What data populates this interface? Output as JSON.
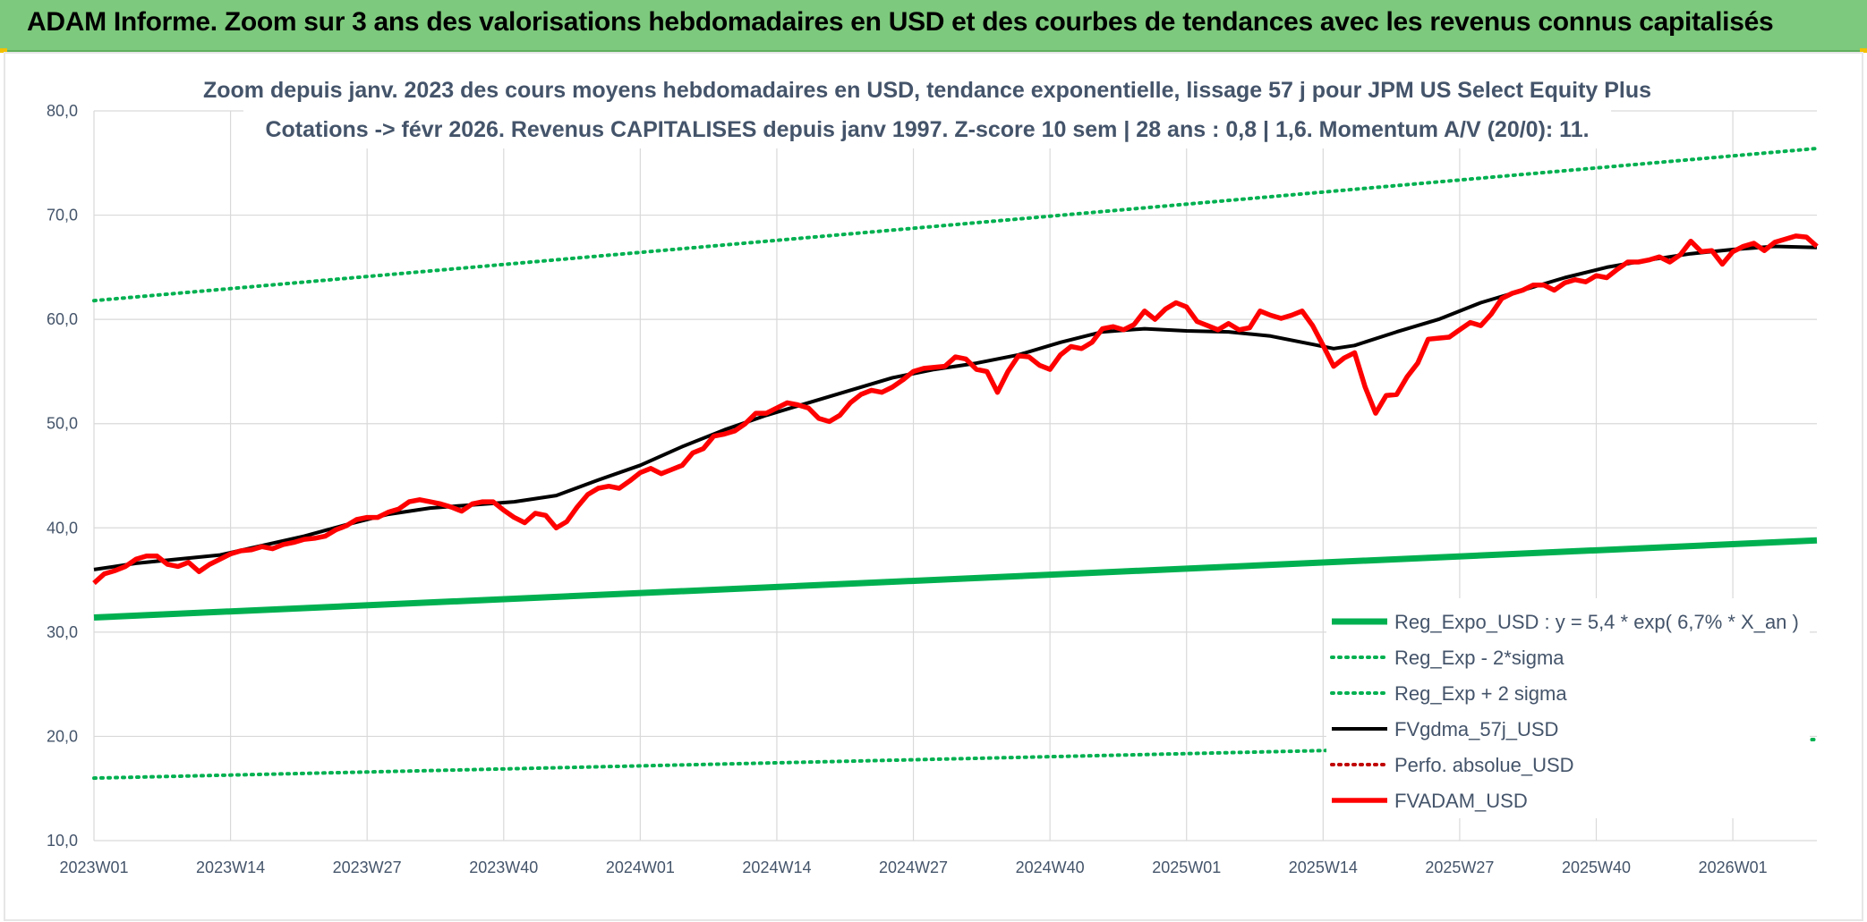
{
  "header": {
    "title": "ADAM Informe. Zoom sur 3 ans des valorisations hebdomadaires en USD et des courbes de tendances avec les revenus connus capitalisés"
  },
  "colors": {
    "banner": "#7dc97d",
    "reg_expo": "#00b050",
    "fvgdma": "#000000",
    "perfo": "#c00000",
    "fvadam": "#ff0000",
    "text": "#44546a",
    "grid": "#d9d9d9"
  },
  "chart_data": {
    "type": "line",
    "title_lines": [
      "Zoom depuis janv. 2023 des cours moyens hebdomadaires en USD, tendance exponentielle, lissage 57 j pour JPM US Select Equity Plus",
      "Cotations -> févr 2026. Revenus CAPITALISES depuis janv 1997. Z-score 10 sem | 28 ans : 0,8 | 1,6. Momentum A/V (20/0): 11."
    ],
    "ylim": [
      10,
      80
    ],
    "yticks": [
      "10,0",
      "20,0",
      "30,0",
      "40,0",
      "50,0",
      "60,0",
      "70,0",
      "80,0"
    ],
    "xlim": [
      0,
      164
    ],
    "xticks": [
      {
        "pos": 0,
        "label": "2023W01"
      },
      {
        "pos": 13,
        "label": "2023W14"
      },
      {
        "pos": 26,
        "label": "2023W27"
      },
      {
        "pos": 39,
        "label": "2023W40"
      },
      {
        "pos": 52,
        "label": "2024W01"
      },
      {
        "pos": 65,
        "label": "2024W14"
      },
      {
        "pos": 78,
        "label": "2024W27"
      },
      {
        "pos": 91,
        "label": "2024W40"
      },
      {
        "pos": 104,
        "label": "2025W01"
      },
      {
        "pos": 117,
        "label": "2025W14"
      },
      {
        "pos": 130,
        "label": "2025W27"
      },
      {
        "pos": 143,
        "label": "2025W40"
      },
      {
        "pos": 156,
        "label": "2026W01"
      }
    ],
    "grid": true,
    "legend_position": "bottom-right",
    "series": [
      {
        "name": "Reg_Expo_USD : y = 5,4 * exp( 6,7% *  X_an )",
        "style": "solid-thick",
        "color": "#00b050",
        "points": [
          [
            0,
            31.4
          ],
          [
            164,
            38.8
          ]
        ]
      },
      {
        "name": "Reg_Exp - 2*sigma",
        "style": "dotted",
        "color": "#00b050",
        "points": [
          [
            0,
            16.0
          ],
          [
            164,
            19.7
          ]
        ]
      },
      {
        "name": "Reg_Exp + 2 sigma",
        "style": "dotted",
        "color": "#00b050",
        "points": [
          [
            0,
            61.8
          ],
          [
            164,
            76.4
          ]
        ]
      },
      {
        "name": "FVgdma_57j_USD",
        "style": "solid",
        "color": "#000000",
        "points": [
          [
            0,
            36.0
          ],
          [
            4,
            36.6
          ],
          [
            8,
            37.0
          ],
          [
            12,
            37.4
          ],
          [
            16,
            38.3
          ],
          [
            20,
            39.2
          ],
          [
            24,
            40.3
          ],
          [
            28,
            41.3
          ],
          [
            32,
            41.9
          ],
          [
            36,
            42.2
          ],
          [
            40,
            42.5
          ],
          [
            44,
            43.1
          ],
          [
            48,
            44.6
          ],
          [
            52,
            46.0
          ],
          [
            56,
            47.8
          ],
          [
            60,
            49.4
          ],
          [
            64,
            50.8
          ],
          [
            68,
            52.0
          ],
          [
            72,
            53.2
          ],
          [
            76,
            54.4
          ],
          [
            80,
            55.2
          ],
          [
            84,
            55.8
          ],
          [
            88,
            56.6
          ],
          [
            92,
            57.8
          ],
          [
            96,
            58.8
          ],
          [
            100,
            59.1
          ],
          [
            104,
            58.9
          ],
          [
            108,
            58.8
          ],
          [
            112,
            58.4
          ],
          [
            116,
            57.6
          ],
          [
            118,
            57.2
          ],
          [
            120,
            57.5
          ],
          [
            124,
            58.8
          ],
          [
            128,
            60.0
          ],
          [
            132,
            61.6
          ],
          [
            136,
            62.8
          ],
          [
            140,
            64.0
          ],
          [
            144,
            65.0
          ],
          [
            148,
            65.7
          ],
          [
            152,
            66.3
          ],
          [
            156,
            66.7
          ],
          [
            160,
            67.0
          ],
          [
            164,
            66.9
          ]
        ]
      },
      {
        "name": "Perfo. absolue_USD",
        "style": "dotted",
        "color": "#c00000",
        "points": []
      },
      {
        "name": "FVADAM_USD",
        "style": "solid-thick",
        "color": "#ff0000",
        "points": [
          [
            0,
            34.7
          ],
          [
            1,
            35.6
          ],
          [
            2,
            35.9
          ],
          [
            3,
            36.3
          ],
          [
            4,
            37.0
          ],
          [
            5,
            37.3
          ],
          [
            6,
            37.3
          ],
          [
            7,
            36.5
          ],
          [
            8,
            36.3
          ],
          [
            9,
            36.7
          ],
          [
            10,
            35.8
          ],
          [
            11,
            36.5
          ],
          [
            12,
            37.0
          ],
          [
            13,
            37.5
          ],
          [
            14,
            37.8
          ],
          [
            15,
            37.9
          ],
          [
            16,
            38.2
          ],
          [
            17,
            38.0
          ],
          [
            18,
            38.4
          ],
          [
            19,
            38.6
          ],
          [
            20,
            38.9
          ],
          [
            21,
            39.0
          ],
          [
            22,
            39.2
          ],
          [
            23,
            39.8
          ],
          [
            24,
            40.2
          ],
          [
            25,
            40.8
          ],
          [
            26,
            41.0
          ],
          [
            27,
            41.0
          ],
          [
            28,
            41.5
          ],
          [
            29,
            41.8
          ],
          [
            30,
            42.5
          ],
          [
            31,
            42.7
          ],
          [
            32,
            42.5
          ],
          [
            33,
            42.3
          ],
          [
            34,
            42.0
          ],
          [
            35,
            41.6
          ],
          [
            36,
            42.3
          ],
          [
            37,
            42.5
          ],
          [
            38,
            42.5
          ],
          [
            39,
            41.7
          ],
          [
            40,
            41.0
          ],
          [
            41,
            40.5
          ],
          [
            42,
            41.4
          ],
          [
            43,
            41.2
          ],
          [
            44,
            40.0
          ],
          [
            45,
            40.6
          ],
          [
            46,
            42.0
          ],
          [
            47,
            43.2
          ],
          [
            48,
            43.8
          ],
          [
            49,
            44.0
          ],
          [
            50,
            43.8
          ],
          [
            51,
            44.5
          ],
          [
            52,
            45.3
          ],
          [
            53,
            45.7
          ],
          [
            54,
            45.2
          ],
          [
            55,
            45.6
          ],
          [
            56,
            46.0
          ],
          [
            57,
            47.2
          ],
          [
            58,
            47.6
          ],
          [
            59,
            48.8
          ],
          [
            60,
            49.0
          ],
          [
            61,
            49.3
          ],
          [
            62,
            50.0
          ],
          [
            63,
            51.0
          ],
          [
            64,
            51.0
          ],
          [
            65,
            51.5
          ],
          [
            66,
            52.0
          ],
          [
            67,
            51.8
          ],
          [
            68,
            51.5
          ],
          [
            69,
            50.5
          ],
          [
            70,
            50.2
          ],
          [
            71,
            50.8
          ],
          [
            72,
            52.0
          ],
          [
            73,
            52.8
          ],
          [
            74,
            53.2
          ],
          [
            75,
            53.0
          ],
          [
            76,
            53.5
          ],
          [
            77,
            54.2
          ],
          [
            78,
            55.0
          ],
          [
            79,
            55.3
          ],
          [
            80,
            55.4
          ],
          [
            81,
            55.5
          ],
          [
            82,
            56.4
          ],
          [
            83,
            56.2
          ],
          [
            84,
            55.2
          ],
          [
            85,
            55.0
          ],
          [
            86,
            53.0
          ],
          [
            87,
            55.0
          ],
          [
            88,
            56.5
          ],
          [
            89,
            56.4
          ],
          [
            90,
            55.6
          ],
          [
            91,
            55.2
          ],
          [
            92,
            56.6
          ],
          [
            93,
            57.4
          ],
          [
            94,
            57.2
          ],
          [
            95,
            57.8
          ],
          [
            96,
            59.1
          ],
          [
            97,
            59.3
          ],
          [
            98,
            59.0
          ],
          [
            99,
            59.5
          ],
          [
            100,
            60.8
          ],
          [
            101,
            60.0
          ],
          [
            102,
            61.0
          ],
          [
            103,
            61.6
          ],
          [
            104,
            61.2
          ],
          [
            105,
            59.8
          ],
          [
            106,
            59.4
          ],
          [
            107,
            59.0
          ],
          [
            108,
            59.6
          ],
          [
            109,
            59.0
          ],
          [
            110,
            59.2
          ],
          [
            111,
            60.8
          ],
          [
            112,
            60.4
          ],
          [
            113,
            60.1
          ],
          [
            114,
            60.4
          ],
          [
            115,
            60.8
          ],
          [
            116,
            59.4
          ],
          [
            117,
            57.5
          ],
          [
            118,
            55.5
          ],
          [
            119,
            56.3
          ],
          [
            120,
            56.8
          ],
          [
            121,
            53.5
          ],
          [
            122,
            51.0
          ],
          [
            123,
            52.7
          ],
          [
            124,
            52.8
          ],
          [
            125,
            54.5
          ],
          [
            126,
            55.8
          ],
          [
            127,
            58.1
          ],
          [
            128,
            58.2
          ],
          [
            129,
            58.3
          ],
          [
            130,
            59.0
          ],
          [
            131,
            59.7
          ],
          [
            132,
            59.4
          ],
          [
            133,
            60.5
          ],
          [
            134,
            62.0
          ],
          [
            135,
            62.5
          ],
          [
            136,
            62.8
          ],
          [
            137,
            63.3
          ],
          [
            138,
            63.3
          ],
          [
            139,
            62.8
          ],
          [
            140,
            63.5
          ],
          [
            141,
            63.8
          ],
          [
            142,
            63.6
          ],
          [
            143,
            64.2
          ],
          [
            144,
            64.0
          ],
          [
            145,
            64.8
          ],
          [
            146,
            65.5
          ],
          [
            147,
            65.5
          ],
          [
            148,
            65.7
          ],
          [
            149,
            66.0
          ],
          [
            150,
            65.5
          ],
          [
            151,
            66.2
          ],
          [
            152,
            67.5
          ],
          [
            153,
            66.5
          ],
          [
            154,
            66.6
          ],
          [
            155,
            65.3
          ],
          [
            156,
            66.5
          ],
          [
            157,
            67.0
          ],
          [
            158,
            67.3
          ],
          [
            159,
            66.6
          ],
          [
            160,
            67.4
          ],
          [
            161,
            67.7
          ],
          [
            162,
            68.0
          ],
          [
            163,
            67.9
          ],
          [
            164,
            67.0
          ]
        ]
      }
    ]
  }
}
